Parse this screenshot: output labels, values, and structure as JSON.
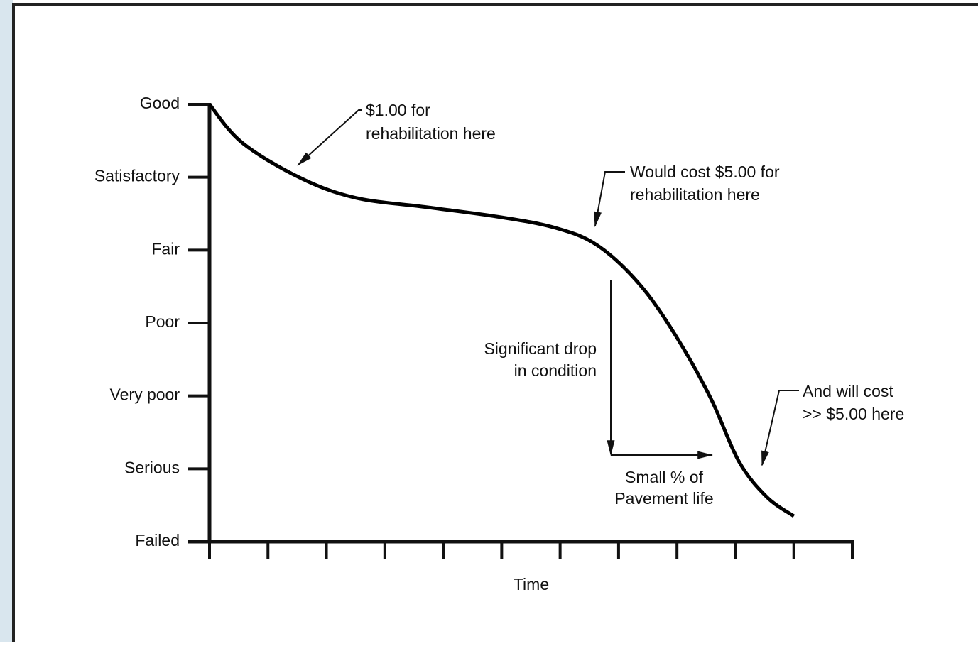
{
  "chart_data": {
    "type": "line",
    "xlabel": "Time",
    "xlim": [
      0,
      11
    ],
    "xticks": [
      0,
      1,
      2,
      3,
      4,
      5,
      6,
      7,
      8,
      9,
      10,
      11
    ],
    "ylim": [
      0,
      6
    ],
    "yticks": [
      {
        "value": 6,
        "label": "Good"
      },
      {
        "value": 5,
        "label": "Satisfactory"
      },
      {
        "value": 4,
        "label": "Fair"
      },
      {
        "value": 3,
        "label": "Poor"
      },
      {
        "value": 2,
        "label": "Very poor"
      },
      {
        "value": 1,
        "label": "Serious"
      },
      {
        "value": 0,
        "label": "Failed"
      }
    ],
    "x": [
      0,
      0.55,
      1.53,
      2.49,
      3.71,
      4.92,
      5.9,
      6.63,
      7.35,
      7.96,
      8.57,
      9.06,
      9.54,
      10.0
    ],
    "values": [
      6,
      5.48,
      5.0,
      4.72,
      4.59,
      4.46,
      4.31,
      4.07,
      3.54,
      2.85,
      1.98,
      1.1,
      0.61,
      0.35
    ],
    "color": "#000000",
    "annotations": [
      {
        "lines": [
          "$1.00 for",
          "rehabilitation here"
        ]
      },
      {
        "lines": [
          "Would cost $5.00 for",
          "rehabilitation here"
        ]
      },
      {
        "lines": [
          "Significant drop",
          "in condition"
        ]
      },
      {
        "lines": [
          "Small % of",
          "Pavement life"
        ]
      },
      {
        "lines": [
          "And will cost",
          ">> $5.00 here"
        ]
      }
    ]
  }
}
